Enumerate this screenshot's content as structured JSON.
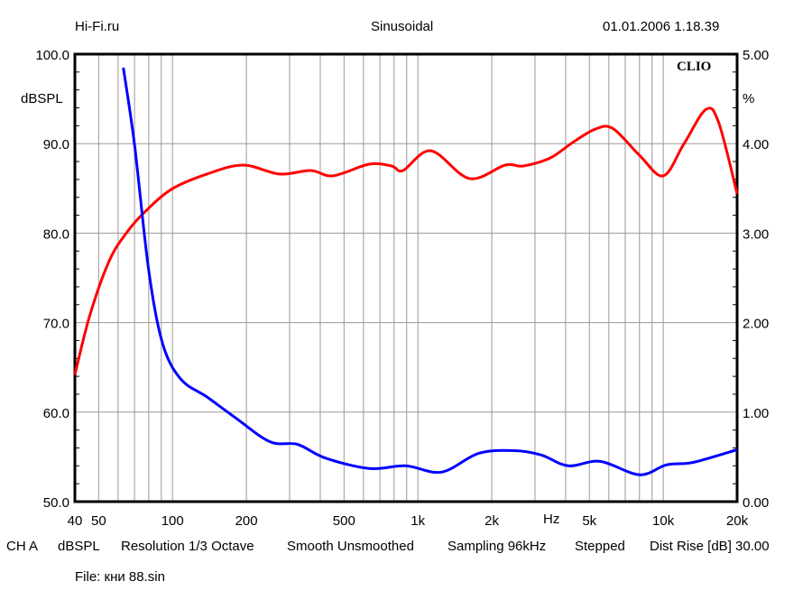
{
  "header": {
    "left": "Hi-Fi.ru",
    "center": "Sinusoidal",
    "right": "01.01.2006 1.18.39"
  },
  "logo": "CLIO",
  "footer": {
    "channel": "CH A",
    "unit": "dBSPL",
    "resolution": "Resolution 1/3 Octave",
    "smooth": "Smooth Unsmoothed",
    "sampling": "Sampling 96kHz",
    "mode": "Stepped",
    "dist_rise": "Dist Rise [dB] 30.00",
    "file": "File: кни 88.sin"
  },
  "chart_data": {
    "type": "line",
    "xscale": "log",
    "xlim": [
      40,
      20000
    ],
    "xlabel": "Hz",
    "xticks": [
      {
        "v": 40,
        "label": "40"
      },
      {
        "v": 50,
        "label": "50"
      },
      {
        "v": 100,
        "label": "100"
      },
      {
        "v": 200,
        "label": "200"
      },
      {
        "v": 500,
        "label": "500"
      },
      {
        "v": 1000,
        "label": "1k"
      },
      {
        "v": 2000,
        "label": "2k"
      },
      {
        "v": 5000,
        "label": "5k"
      },
      {
        "v": 10000,
        "label": "10k"
      },
      {
        "v": 20000,
        "label": "20k"
      }
    ],
    "y_left": {
      "label": "dBSPL",
      "lim": [
        50,
        100
      ],
      "ticks": [
        "100.0",
        "90.0",
        "80.0",
        "70.0",
        "60.0",
        "50.0"
      ]
    },
    "y_right": {
      "label": "%",
      "lim": [
        0,
        5
      ],
      "ticks": [
        "5.00",
        "4.00",
        "3.00",
        "2.00",
        "1.00",
        "0.00"
      ]
    },
    "grid": true,
    "series": [
      {
        "axis": "left",
        "color": "#ff0000",
        "x": [
          40,
          46,
          55,
          64,
          76,
          99,
          138,
          194,
          273,
          366,
          451,
          632,
          782,
          870,
          1130,
          1620,
          2270,
          2690,
          3460,
          4260,
          5260,
          6220,
          8000,
          10000,
          12100,
          14900,
          16800,
          20000
        ],
        "y": [
          64.2,
          70.8,
          76.8,
          79.8,
          82.2,
          84.9,
          86.6,
          87.6,
          86.6,
          87.0,
          86.4,
          87.7,
          87.5,
          87.0,
          89.2,
          86.1,
          87.6,
          87.5,
          88.4,
          90.1,
          91.6,
          91.7,
          88.7,
          86.4,
          89.9,
          93.8,
          92.4,
          84.4
        ]
      },
      {
        "axis": "right",
        "color": "#0000ff",
        "x": [
          63,
          70,
          80,
          91,
          108,
          138,
          178,
          249,
          323,
          417,
          632,
          891,
          1250,
          1770,
          2480,
          3190,
          4100,
          5530,
          8000,
          10300,
          13300,
          20000
        ],
        "y": [
          4.85,
          3.99,
          2.58,
          1.77,
          1.37,
          1.17,
          0.95,
          0.67,
          0.64,
          0.49,
          0.37,
          0.4,
          0.33,
          0.54,
          0.57,
          0.52,
          0.4,
          0.45,
          0.3,
          0.41,
          0.44,
          0.58
        ]
      }
    ]
  }
}
